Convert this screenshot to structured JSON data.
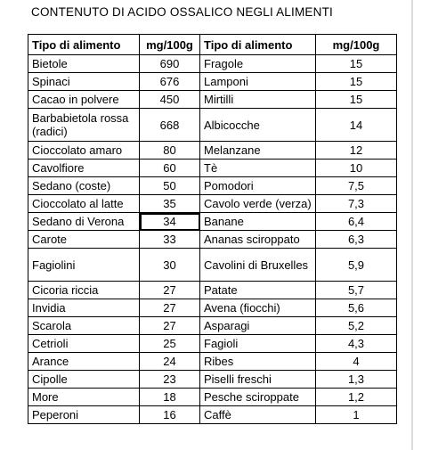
{
  "title": "CONTENUTO DI ACIDO OSSALICO NEGLI ALIMENTI",
  "headers": [
    "Tipo di alimento",
    "mg/100g",
    "Tipo di alimento",
    "mg/100g"
  ],
  "rows": [
    [
      "Bietole",
      "690",
      "Fragole",
      "15"
    ],
    [
      "Spinaci",
      "676",
      "Lamponi",
      "15"
    ],
    [
      "Cacao in polvere",
      "450",
      "Mirtilli",
      "15"
    ],
    [
      "Barbabietola rossa (radici)",
      "668",
      "Albicocche",
      "14"
    ],
    [
      "Cioccolato amaro",
      "80",
      "Melanzane",
      "12"
    ],
    [
      "Cavolfiore",
      "60",
      "Tè",
      "10"
    ],
    [
      "Sedano (coste)",
      "50",
      "Pomodori",
      "7,5"
    ],
    [
      "Cioccolato al latte",
      "35",
      "Cavolo verde (verza)",
      "7,3"
    ],
    [
      "Sedano di Verona",
      "34",
      "Banane",
      "6,4"
    ],
    [
      "Carote",
      "33",
      "Ananas sciroppato",
      "6,3"
    ],
    [
      "Fagiolini",
      "30",
      "Cavolini di Bruxelles",
      "5,9"
    ],
    [
      "Cicoria riccia",
      "27",
      "Patate",
      "5,7"
    ],
    [
      "Invidia",
      "27",
      "Avena (fiocchi)",
      "5,6"
    ],
    [
      "Scarola",
      "27",
      "Asparagi",
      "5,2"
    ],
    [
      "Cetrioli",
      "25",
      "Fagioli",
      "4,3"
    ],
    [
      "Arance",
      "24",
      "Ribes",
      "4"
    ],
    [
      "Cipolle",
      "23",
      "Piselli freschi",
      "1,3"
    ],
    [
      "More",
      "18",
      "Pesche sciroppate",
      "1,2"
    ],
    [
      "Peperoni",
      "16",
      "Caffè",
      "1"
    ]
  ]
}
